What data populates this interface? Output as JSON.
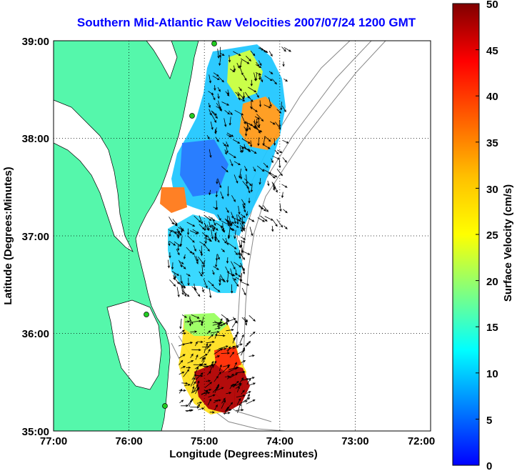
{
  "title": "Southern Mid-Atlantic Raw Velocities 2007/07/24 1200 GMT",
  "map": {
    "xlabel": "Longitude (Degrees:Minutes)",
    "ylabel": "Latitude (Degrees:Minutes)",
    "x_ticks": [
      "77:00",
      "76:00",
      "75:00",
      "74:00",
      "73:00",
      "72:00"
    ],
    "y_ticks": [
      "39:00",
      "38:00",
      "37:00",
      "36:00",
      "35:00"
    ],
    "x_range": [
      -77,
      -72
    ],
    "y_range": [
      35,
      39
    ],
    "grid": "dotted"
  },
  "colorbar": {
    "label": "Surface Velocity (cm/s)",
    "ticks": [
      "50",
      "45",
      "40",
      "35",
      "30",
      "25",
      "20",
      "15",
      "10",
      "5",
      "0"
    ],
    "range": [
      0,
      50
    ]
  },
  "colors": {
    "land": "#55f7ab",
    "title": "#0000ff",
    "station": "#22cc22"
  }
}
